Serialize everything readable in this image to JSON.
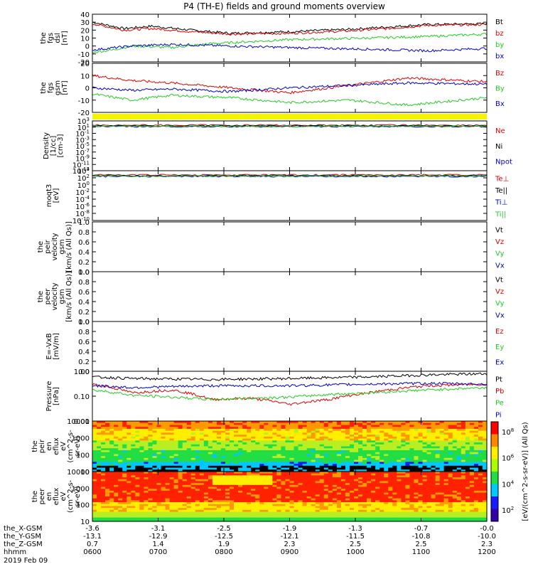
{
  "title": "P4 (TH-E) fields and ground moments overview",
  "colors": {
    "black": "#000000",
    "red": "#e00000",
    "green": "#22cc22",
    "blue": "#0000cc",
    "yellow": "#ffff00",
    "ephem_band": "#f4f400"
  },
  "chart_data": [
    {
      "id": "fgs_dsl",
      "type": "line",
      "ylabel": [
        "the",
        "fgs",
        "dsl",
        "[nT]"
      ],
      "yticks": [
        40,
        30,
        20,
        10,
        0,
        -10,
        -20
      ],
      "ylim": [
        -20,
        40
      ],
      "legend": [
        {
          "name": "Bt",
          "color": "#000000"
        },
        {
          "name": "bz",
          "color": "#e00000"
        },
        {
          "name": "by",
          "color": "#22cc22"
        },
        {
          "name": "bx",
          "color": "#0000cc"
        }
      ],
      "series": [
        {
          "name": "Bt",
          "color": "#000000",
          "x": [
            0,
            0.08,
            0.15,
            0.25,
            0.35,
            0.5,
            0.65,
            0.75,
            0.85,
            1
          ],
          "y": [
            30,
            22,
            25,
            20,
            16,
            18,
            21,
            24,
            27,
            28
          ]
        },
        {
          "name": "bz",
          "color": "#e00000",
          "x": [
            0,
            0.08,
            0.15,
            0.25,
            0.35,
            0.5,
            0.65,
            0.75,
            0.85,
            1
          ],
          "y": [
            28,
            20,
            22,
            18,
            15,
            16,
            19,
            22,
            26,
            27
          ]
        },
        {
          "name": "by",
          "color": "#22cc22",
          "x": [
            0,
            0.05,
            0.1,
            0.2,
            0.3,
            0.5,
            0.7,
            0.85,
            1
          ],
          "y": [
            -8,
            -5,
            0,
            -2,
            3,
            8,
            10,
            12,
            15
          ]
        },
        {
          "name": "bx",
          "color": "#0000cc",
          "x": [
            0,
            0.1,
            0.2,
            0.35,
            0.5,
            0.7,
            0.85,
            1
          ],
          "y": [
            -5,
            0,
            2,
            0,
            -2,
            -4,
            -6,
            -3
          ]
        }
      ]
    },
    {
      "id": "fgs_gsm",
      "type": "line",
      "ylabel": [
        "the",
        "fgs",
        "gsm",
        "[nT]"
      ],
      "yticks": [
        20,
        10,
        0,
        -10,
        -20
      ],
      "ylim": [
        -20,
        20
      ],
      "legend": [
        {
          "name": "Bz",
          "color": "#e00000"
        },
        {
          "name": "By",
          "color": "#22cc22"
        },
        {
          "name": "Bx",
          "color": "#0000cc"
        }
      ],
      "series": [
        {
          "name": "Bz",
          "color": "#e00000",
          "x": [
            0,
            0.1,
            0.2,
            0.35,
            0.5,
            0.65,
            0.8,
            1
          ],
          "y": [
            10,
            6,
            4,
            0,
            -4,
            2,
            8,
            5
          ]
        },
        {
          "name": "By",
          "color": "#22cc22",
          "x": [
            0,
            0.1,
            0.2,
            0.35,
            0.5,
            0.65,
            0.8,
            1
          ],
          "y": [
            -5,
            -10,
            -6,
            -8,
            -12,
            -10,
            -14,
            -8
          ]
        },
        {
          "name": "Bx",
          "color": "#0000cc",
          "x": [
            0,
            0.1,
            0.2,
            0.35,
            0.5,
            0.65,
            0.8,
            1
          ],
          "y": [
            0,
            -2,
            -1,
            -3,
            0,
            2,
            4,
            3
          ]
        }
      ]
    },
    {
      "id": "density",
      "type": "line",
      "log": true,
      "ylabel": [
        "Density",
        "[1/cc]",
        "[cm-3]"
      ],
      "yticks": [
        "10^3",
        "10^1",
        "10^-1",
        "10^-3",
        "10^-5",
        "10^-7",
        "10^-9",
        "10^-11",
        "10^-13"
      ],
      "legend": [
        {
          "name": "Ne",
          "color": "#e00000"
        },
        {
          "name": "Ni",
          "color": "#000000"
        },
        {
          "name": "Npot",
          "color": "#0000cc"
        }
      ]
    },
    {
      "id": "temperature",
      "type": "line",
      "log": true,
      "ylabel": [
        "moqt3",
        "[eV]"
      ],
      "yticks": [
        "10^4",
        "10^2",
        "10^0",
        "10^-2",
        "10^-4",
        "10^-6",
        "10^-8",
        "10^-10"
      ],
      "legend": [
        {
          "name": "Te⊥",
          "color": "#e00000"
        },
        {
          "name": "Te||",
          "color": "#000000"
        },
        {
          "name": "Ti⊥",
          "color": "#0000cc"
        },
        {
          "name": "Ti||",
          "color": "#22cc22"
        }
      ]
    },
    {
      "id": "peir_velocity",
      "type": "line",
      "ylabel": [
        "the",
        "peir",
        "velocity",
        "gsm",
        "[km/s (All Qs)]"
      ],
      "yticks": [
        "1.0",
        "0.8",
        "0.6",
        "0.4",
        "0.2",
        "0.0"
      ],
      "legend": [
        {
          "name": "Vt",
          "color": "#000000"
        },
        {
          "name": "Vz",
          "color": "#e00000"
        },
        {
          "name": "Vy",
          "color": "#22cc22"
        },
        {
          "name": "Vx",
          "color": "#0000cc"
        }
      ]
    },
    {
      "id": "peer_velocity",
      "type": "line",
      "ylabel": [
        "the",
        "peer",
        "velocity",
        "gsm",
        "[km/s (All Qs)]"
      ],
      "yticks": [
        "1.0",
        "0.8",
        "0.6",
        "0.4",
        "0.2",
        "0.0"
      ],
      "legend": [
        {
          "name": "Vt",
          "color": "#000000"
        },
        {
          "name": "Vz",
          "color": "#e00000"
        },
        {
          "name": "Vy",
          "color": "#22cc22"
        },
        {
          "name": "Vx",
          "color": "#0000cc"
        }
      ]
    },
    {
      "id": "efield",
      "type": "line",
      "ylabel": [
        "E=-VxB",
        "[mV/m]"
      ],
      "yticks": [
        "1.0",
        "0.8",
        "0.6",
        "0.4",
        "0.2",
        "0.0"
      ],
      "legend": [
        {
          "name": "Ez",
          "color": "#e00000"
        },
        {
          "name": "Ey",
          "color": "#22cc22"
        },
        {
          "name": "Ex",
          "color": "#0000cc"
        }
      ]
    },
    {
      "id": "pressure",
      "type": "line",
      "log": true,
      "ylabel": [
        "Pressure",
        "[nPa]"
      ],
      "yticks": [
        "1.00",
        "0.10",
        "0.01"
      ],
      "ylim": [
        0.01,
        1.2
      ],
      "legend": [
        {
          "name": "Pt",
          "color": "#000000"
        },
        {
          "name": "Pb",
          "color": "#e00000"
        },
        {
          "name": "Pe",
          "color": "#22cc22"
        },
        {
          "name": "Pi",
          "color": "#0000cc"
        }
      ],
      "series": [
        {
          "name": "Pt",
          "color": "#000000",
          "x": [
            0,
            0.1,
            0.3,
            0.5,
            0.7,
            0.85,
            1
          ],
          "y": [
            0.7,
            0.6,
            0.55,
            0.6,
            0.7,
            0.85,
            0.95
          ]
        },
        {
          "name": "Pb",
          "color": "#e00000",
          "x": [
            0,
            0.1,
            0.2,
            0.3,
            0.4,
            0.5,
            0.6,
            0.7,
            0.85,
            1
          ],
          "y": [
            0.35,
            0.15,
            0.2,
            0.08,
            0.09,
            0.05,
            0.08,
            0.15,
            0.3,
            0.35
          ]
        },
        {
          "name": "Pe",
          "color": "#22cc22",
          "x": [
            0,
            0.1,
            0.2,
            0.3,
            0.4,
            0.5,
            0.6,
            0.7,
            0.85,
            1
          ],
          "y": [
            0.2,
            0.12,
            0.1,
            0.08,
            0.09,
            0.1,
            0.13,
            0.15,
            0.2,
            0.25
          ]
        },
        {
          "name": "Pi",
          "color": "#0000cc",
          "x": [
            0,
            0.1,
            0.3,
            0.5,
            0.7,
            0.85,
            1
          ],
          "y": [
            0.3,
            0.25,
            0.3,
            0.3,
            0.35,
            0.38,
            0.35
          ]
        }
      ]
    },
    {
      "id": "peir_eflux",
      "type": "heatmap",
      "ylabel": [
        "the",
        "peir",
        "en",
        "eflux",
        "eV",
        "(cm^2-s-",
        "sr-eV)"
      ],
      "yticks": [
        "10000",
        "1000",
        "100",
        "10"
      ]
    },
    {
      "id": "peer_eflux",
      "type": "heatmap",
      "ylabel": [
        "the",
        "peer",
        "en",
        "eflux",
        "eV",
        "(cm^2-s-",
        "sr-eV)"
      ],
      "yticks": [
        "10000",
        "1000",
        "100",
        "10"
      ]
    }
  ],
  "colorbar": {
    "label": "[eV/(cm^2-s-sr-eV)] (All Qs)",
    "ticks": [
      "10^8",
      "10^6",
      "10^4",
      "10^2"
    ]
  },
  "xaxis": {
    "row_labels": [
      "the_X-GSM",
      "the_Y-GSM",
      "the_Z-GSM",
      "hhmm",
      "2019 Feb 09"
    ],
    "columns": [
      {
        "x": "-3.6",
        "y": "-13.1",
        "z": "0.7",
        "time": "0600"
      },
      {
        "x": "-3.1",
        "y": "-12.9",
        "z": "1.4",
        "time": "0700"
      },
      {
        "x": "-2.5",
        "y": "-12.5",
        "z": "1.9",
        "time": "0800"
      },
      {
        "x": "-1.9",
        "y": "-12.1",
        "z": "2.3",
        "time": "0900"
      },
      {
        "x": "-1.3",
        "y": "-11.5",
        "z": "2.5",
        "time": "1000"
      },
      {
        "x": "-0.7",
        "y": "-10.8",
        "z": "2.5",
        "time": "1100"
      },
      {
        "x": "-0.0",
        "y": "-10.0",
        "z": "2.3",
        "time": "1200"
      }
    ]
  }
}
